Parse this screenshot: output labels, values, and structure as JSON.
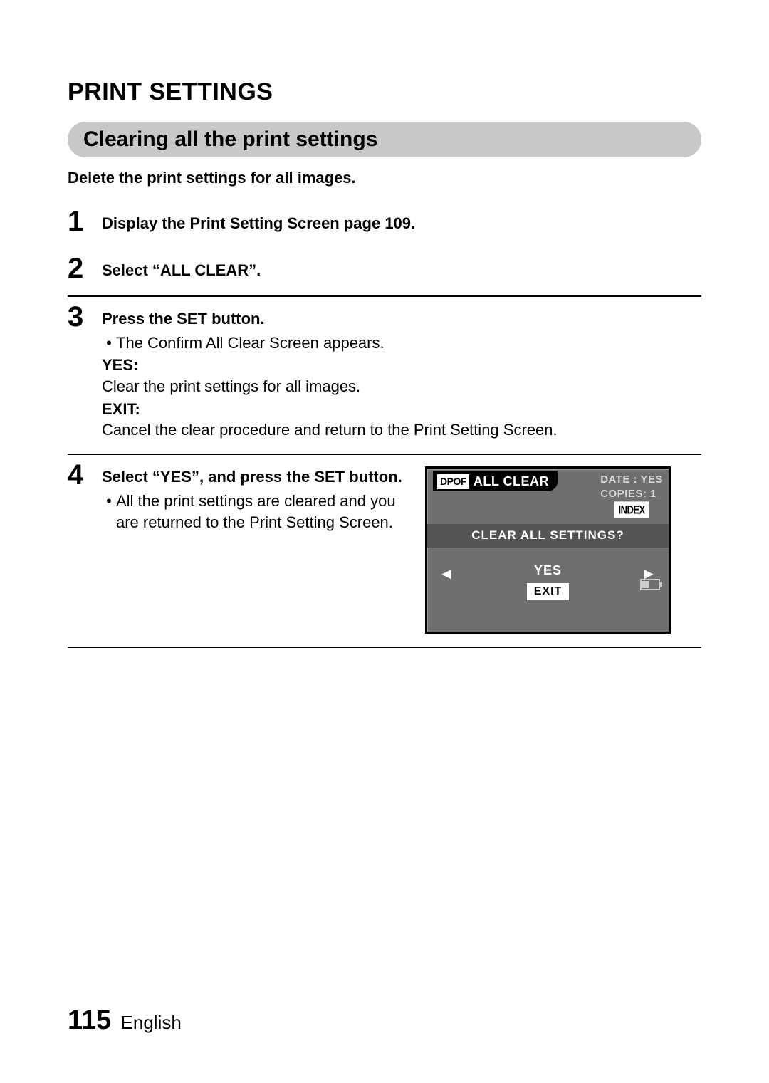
{
  "title": "PRINT SETTINGS",
  "section_heading": "Clearing all the print settings",
  "subtitle": "Delete the print settings for all images.",
  "steps": {
    "s1": {
      "num": "1",
      "instr": "Display the Print Setting Screen page 109."
    },
    "s2": {
      "num": "2",
      "instr": "Select “ALL CLEAR”."
    },
    "s3": {
      "num": "3",
      "instr": "Press the SET button.",
      "bullet": "The Confirm All Clear Screen appears.",
      "yes_label": "YES:",
      "yes_desc": "Clear the print settings for all images.",
      "exit_label": "EXIT:",
      "exit_desc": "Cancel the clear procedure and return to the Print Setting Screen."
    },
    "s4": {
      "num": "4",
      "instr": "Select “YES”, and press the SET button.",
      "bullet": "All the print settings are cleared and you are returned to the Print Setting Screen."
    }
  },
  "lcd": {
    "dpof": "DPOF",
    "all_clear": "ALL CLEAR",
    "date_line": "DATE : YES",
    "copies_line": "COPIES: 1",
    "index": "INDEX",
    "question": "CLEAR ALL SETTINGS?",
    "yes": "YES",
    "exit": "EXIT",
    "arrow_left": "◄",
    "arrow_right": "►",
    "colors": {
      "bg": "#6f6f6f",
      "midbar": "#545454",
      "text": "#ffffff",
      "dimtext": "#d8d8d8"
    }
  },
  "footer": {
    "page": "115",
    "lang": "English"
  }
}
